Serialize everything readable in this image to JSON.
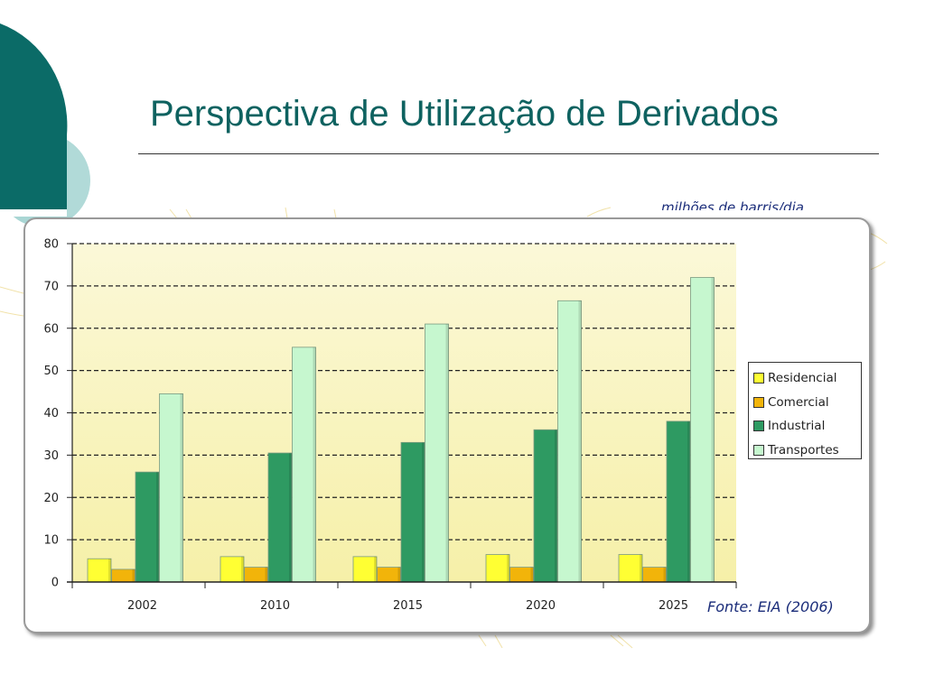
{
  "slide": {
    "title": "Perspectiva de Utilização de Derivados",
    "units_label": "milhões de barris/dia",
    "source": "Fonte: EIA (2006)"
  },
  "colors": {
    "title": "#0e6260",
    "theme_dark": "#0b6b67",
    "theme_light": "#a9d6d4",
    "plot_bg_top": "#fbf8d8",
    "plot_bg_bottom": "#f6f0a8"
  },
  "chart_data": {
    "type": "bar",
    "categories": [
      "2002",
      "2010",
      "2015",
      "2020",
      "2025"
    ],
    "series": [
      {
        "name": "Residencial",
        "color": "#ffff33",
        "values": [
          5.5,
          6,
          6,
          6.5,
          6.5
        ]
      },
      {
        "name": "Comercial",
        "color": "#f2b40a",
        "values": [
          3,
          3.5,
          3.5,
          3.5,
          3.5
        ]
      },
      {
        "name": "Industrial",
        "color": "#2e9a62",
        "values": [
          26,
          30.5,
          33,
          36,
          38
        ]
      },
      {
        "name": "Transportes",
        "color": "#c6f7cf",
        "values": [
          44.5,
          55.5,
          61,
          66.5,
          72
        ]
      }
    ],
    "yticks": [
      0,
      10,
      20,
      30,
      40,
      50,
      60,
      70,
      80
    ],
    "ylim": [
      0,
      80
    ],
    "grid": true,
    "legend_position": "right"
  }
}
